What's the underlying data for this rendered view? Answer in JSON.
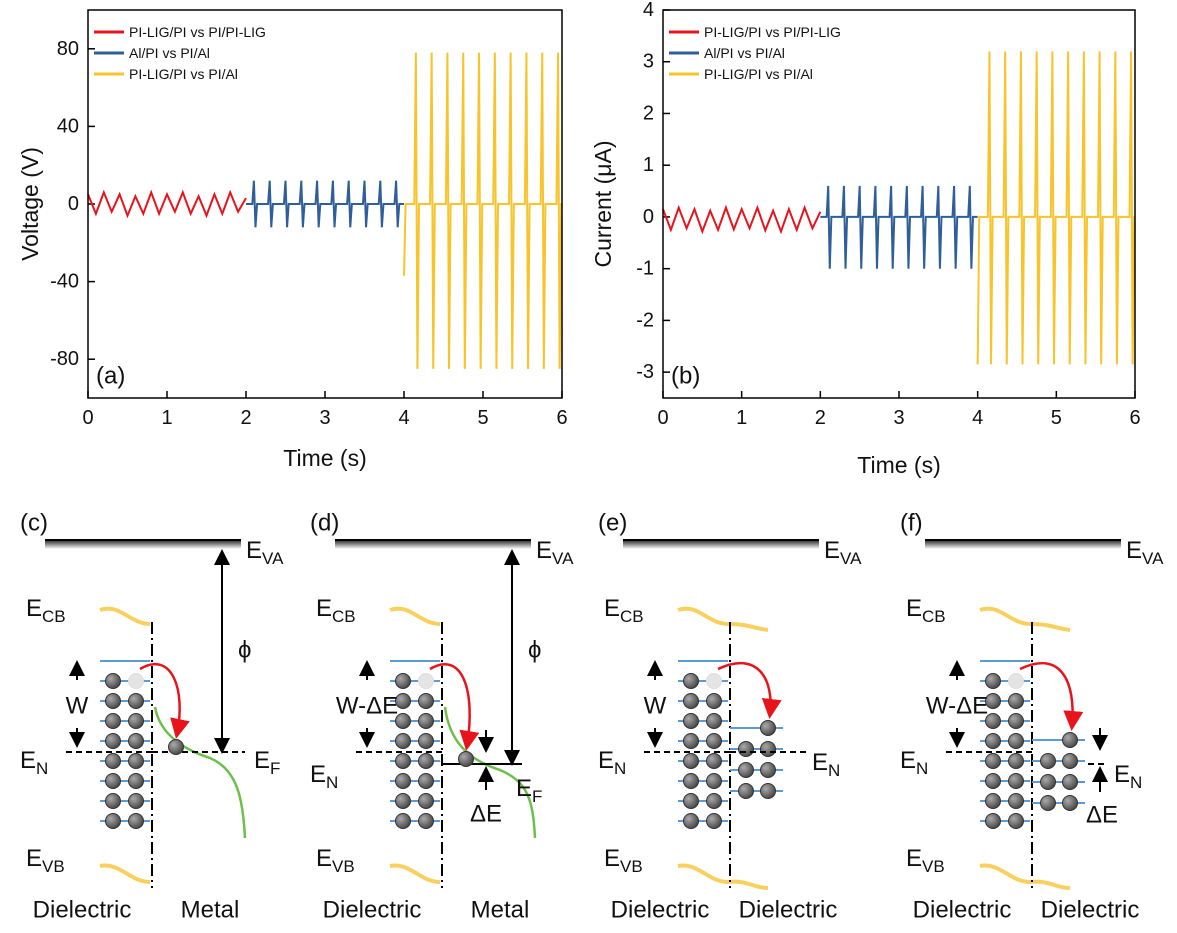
{
  "chart_data": [
    {
      "type": "line",
      "annotation": "(a)",
      "xlabel": "Time (s)",
      "ylabel": "Voltage (V)",
      "xlim": [
        0,
        6
      ],
      "xticks": [
        0,
        1,
        2,
        3,
        4,
        5,
        6
      ],
      "ylim": [
        -100,
        100
      ],
      "yticks": [
        -80,
        -40,
        0,
        40,
        80
      ],
      "legend": "upper left",
      "series": [
        {
          "name": "PI-LIG/PI vs PI/PI-LIG",
          "color": "#e8141c",
          "x": [
            0,
            0.1,
            0.2,
            0.3,
            0.4,
            0.5,
            0.6,
            0.7,
            0.8,
            0.9,
            1.0,
            1.1,
            1.2,
            1.3,
            1.4,
            1.5,
            1.6,
            1.7,
            1.8,
            1.9,
            2.0
          ],
          "values": [
            5,
            -5,
            6,
            -4,
            5,
            -6,
            4,
            -5,
            6,
            -5,
            5,
            -4,
            6,
            -5,
            4,
            -6,
            5,
            -5,
            6,
            -4,
            3
          ]
        },
        {
          "name": "Al/PI vs PI/Al",
          "color": "#2e5f9a",
          "x": [
            2.0,
            2.08,
            2.1,
            2.12,
            2.14,
            2.28,
            2.3,
            2.32,
            2.34,
            2.48,
            2.5,
            2.52,
            2.54,
            2.68,
            2.7,
            2.72,
            2.74,
            2.88,
            2.9,
            2.92,
            2.94,
            3.08,
            3.1,
            3.12,
            3.14,
            3.28,
            3.3,
            3.32,
            3.34,
            3.48,
            3.5,
            3.52,
            3.54,
            3.68,
            3.7,
            3.72,
            3.74,
            3.88,
            3.9,
            3.92,
            3.94,
            4.0
          ],
          "values": [
            0,
            0,
            12,
            -12,
            0,
            0,
            12,
            -12,
            0,
            0,
            12,
            -12,
            0,
            0,
            12,
            -12,
            0,
            0,
            12,
            -12,
            0,
            0,
            12,
            -12,
            0,
            0,
            12,
            -12,
            0,
            0,
            12,
            -12,
            0,
            0,
            12,
            -12,
            0,
            0,
            12,
            -12,
            0,
            0
          ]
        },
        {
          "name": "PI-LIG/PI vs PI/Al",
          "color": "#f7c42b",
          "x": [
            4.0,
            4.02,
            4.13,
            4.15,
            4.17,
            4.19,
            4.33,
            4.35,
            4.37,
            4.39,
            4.53,
            4.55,
            4.57,
            4.59,
            4.73,
            4.75,
            4.77,
            4.79,
            4.93,
            4.95,
            4.97,
            4.99,
            5.13,
            5.15,
            5.17,
            5.19,
            5.33,
            5.35,
            5.37,
            5.39,
            5.53,
            5.55,
            5.57,
            5.59,
            5.73,
            5.75,
            5.77,
            5.79,
            5.93,
            5.95,
            5.97,
            5.99,
            6.0
          ],
          "values": [
            -37,
            0,
            0,
            78,
            -85,
            0,
            0,
            78,
            -85,
            0,
            0,
            78,
            -85,
            0,
            0,
            78,
            -85,
            0,
            0,
            78,
            -85,
            0,
            0,
            78,
            -85,
            0,
            0,
            78,
            -85,
            0,
            0,
            78,
            -85,
            0,
            0,
            78,
            -85,
            0,
            0,
            78,
            -85,
            0,
            0
          ]
        }
      ]
    },
    {
      "type": "line",
      "annotation": "(b)",
      "xlabel": "Time (s)",
      "ylabel": "Current (μA)",
      "xlim": [
        0,
        6
      ],
      "xticks": [
        0,
        1,
        2,
        3,
        4,
        5,
        6
      ],
      "ylim": [
        -3.5,
        4
      ],
      "yticks": [
        -3,
        -2,
        -1,
        0,
        1,
        2,
        3,
        4
      ],
      "legend": "upper left",
      "series": [
        {
          "name": "PI-LIG/PI vs PI/PI-LIG",
          "color": "#e8141c",
          "x": [
            0,
            0.1,
            0.2,
            0.3,
            0.4,
            0.5,
            0.6,
            0.7,
            0.8,
            0.9,
            1.0,
            1.1,
            1.2,
            1.3,
            1.4,
            1.5,
            1.6,
            1.7,
            1.8,
            1.9,
            2.0
          ],
          "values": [
            0.15,
            -0.25,
            0.18,
            -0.22,
            0.15,
            -0.28,
            0.12,
            -0.25,
            0.18,
            -0.24,
            0.15,
            -0.22,
            0.18,
            -0.26,
            0.12,
            -0.28,
            0.15,
            -0.25,
            0.18,
            -0.22,
            0.1
          ]
        },
        {
          "name": "Al/PI vs PI/Al",
          "color": "#2e5f9a",
          "x": [
            2.0,
            2.08,
            2.1,
            2.12,
            2.14,
            2.28,
            2.3,
            2.32,
            2.34,
            2.48,
            2.5,
            2.52,
            2.54,
            2.68,
            2.7,
            2.72,
            2.74,
            2.88,
            2.9,
            2.92,
            2.94,
            3.08,
            3.1,
            3.12,
            3.14,
            3.28,
            3.3,
            3.32,
            3.34,
            3.48,
            3.5,
            3.52,
            3.54,
            3.68,
            3.7,
            3.72,
            3.74,
            3.88,
            3.9,
            3.92,
            3.94,
            4.0
          ],
          "values": [
            0,
            0,
            0.6,
            -1.0,
            0,
            0,
            0.6,
            -1.0,
            0,
            0,
            0.6,
            -1.0,
            0,
            0,
            0.6,
            -1.0,
            0,
            0,
            0.6,
            -1.0,
            0,
            0,
            0.6,
            -1.0,
            0,
            0,
            0.6,
            -1.0,
            0,
            0,
            0.6,
            -1.0,
            0,
            0,
            0.6,
            -1.0,
            0,
            0,
            0.6,
            -1.0,
            0,
            0
          ]
        },
        {
          "name": "PI-LIG/PI vs PI/Al",
          "color": "#f7c42b",
          "x": [
            4.0,
            4.02,
            4.13,
            4.15,
            4.17,
            4.19,
            4.33,
            4.35,
            4.37,
            4.39,
            4.53,
            4.55,
            4.57,
            4.59,
            4.73,
            4.75,
            4.77,
            4.79,
            4.93,
            4.95,
            4.97,
            4.99,
            5.13,
            5.15,
            5.17,
            5.19,
            5.33,
            5.35,
            5.37,
            5.39,
            5.53,
            5.55,
            5.57,
            5.59,
            5.73,
            5.75,
            5.77,
            5.79,
            5.93,
            5.95,
            5.97,
            5.99,
            6.0
          ],
          "values": [
            -2.85,
            0,
            0,
            3.2,
            -2.85,
            0,
            0,
            3.2,
            -2.85,
            0,
            0,
            3.2,
            -2.85,
            0,
            0,
            3.2,
            -2.85,
            0,
            0,
            3.2,
            -2.85,
            0,
            0,
            3.2,
            -2.85,
            0,
            0,
            3.2,
            -2.85,
            0,
            0,
            3.2,
            -2.85,
            0,
            0,
            3.2,
            -2.85,
            0,
            0,
            3.2,
            -2.85,
            0,
            0
          ]
        }
      ]
    }
  ],
  "diagrams": [
    {
      "label": "(c)",
      "vacuum": {
        "main": "E",
        "sub": "VA"
      },
      "conduction": {
        "main": "E",
        "sub": "CB"
      },
      "valence": {
        "main": "E",
        "sub": "VB"
      },
      "width": "W",
      "neutral": {
        "main": "E",
        "sub": "N"
      },
      "fermi": {
        "main": "E",
        "sub": "F"
      },
      "work_function": "ϕ",
      "left_material": "Dielectric",
      "right_material": "Metal"
    },
    {
      "label": "(d)",
      "vacuum": {
        "main": "E",
        "sub": "VA"
      },
      "conduction": {
        "main": "E",
        "sub": "CB"
      },
      "valence": {
        "main": "E",
        "sub": "VB"
      },
      "width": "W-ΔE",
      "neutral": {
        "main": "E",
        "sub": "N"
      },
      "fermi": {
        "main": "E",
        "sub": "F"
      },
      "work_function": "ϕ",
      "shift": "ΔE",
      "left_material": "Dielectric",
      "right_material": "Metal"
    },
    {
      "label": "(e)",
      "vacuum": {
        "main": "E",
        "sub": "VA"
      },
      "conduction": {
        "main": "E",
        "sub": "CB"
      },
      "valence": {
        "main": "E",
        "sub": "VB"
      },
      "width": "W",
      "neutral": {
        "main": "E",
        "sub": "N"
      },
      "neutral_right": {
        "main": "E",
        "sub": "N"
      },
      "left_material": "Dielectric",
      "right_material": "Dielectric"
    },
    {
      "label": "(f)",
      "vacuum": {
        "main": "E",
        "sub": "VA"
      },
      "conduction": {
        "main": "E",
        "sub": "CB"
      },
      "valence": {
        "main": "E",
        "sub": "VB"
      },
      "width": "W-ΔE",
      "neutral": {
        "main": "E",
        "sub": "N"
      },
      "neutral_right": {
        "main": "E",
        "sub": "N"
      },
      "shift": "ΔE",
      "left_material": "Dielectric",
      "right_material": "Dielectric"
    }
  ]
}
